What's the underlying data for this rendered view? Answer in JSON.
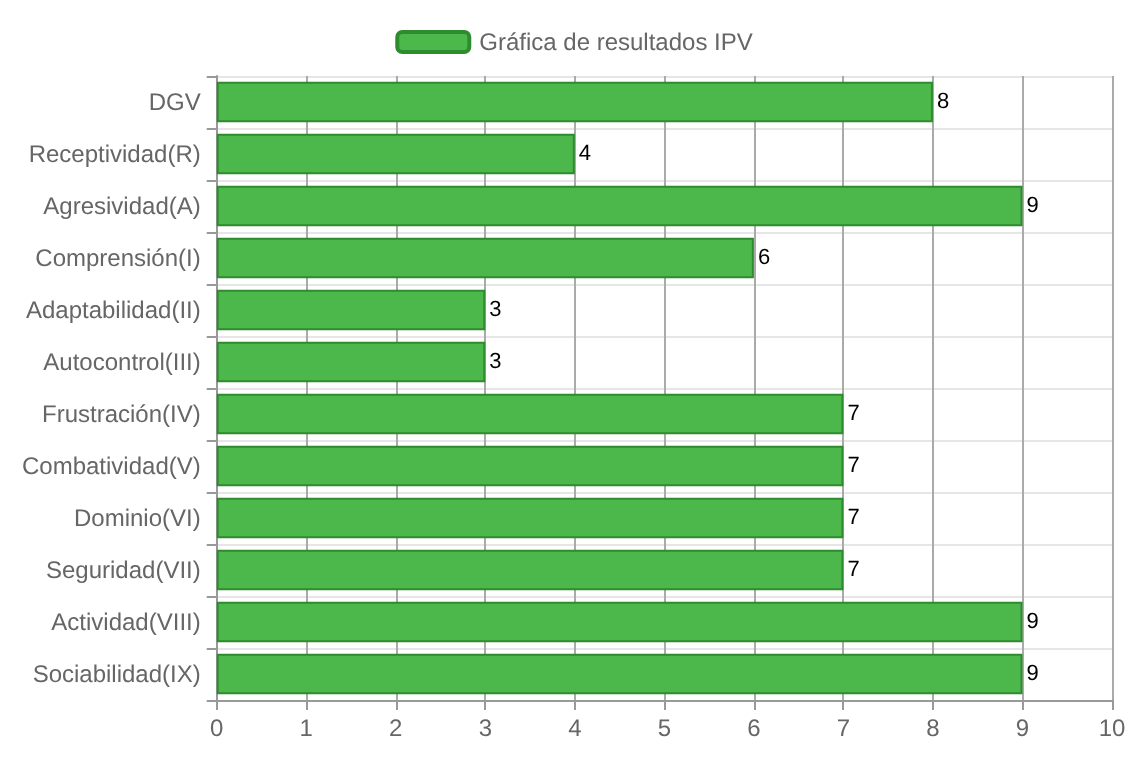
{
  "chart_data": {
    "type": "bar",
    "orientation": "horizontal",
    "categories": [
      "DGV",
      "Receptividad(R)",
      "Agresividad(A)",
      "Comprensión(I)",
      "Adaptabilidad(II)",
      "Autocontrol(III)",
      "Frustración(IV)",
      "Combatividad(V)",
      "Dominio(VI)",
      "Seguridad(VII)",
      "Actividad(VIII)",
      "Sociabilidad(IX)"
    ],
    "series": [
      {
        "name": "Gráfica de resultados IPV",
        "color": "#4cb84c",
        "values": [
          8,
          4,
          9,
          6,
          3,
          3,
          7,
          7,
          7,
          7,
          9,
          9
        ]
      }
    ],
    "xlim": [
      0,
      10
    ],
    "xticks": [
      0,
      1,
      2,
      3,
      4,
      5,
      6,
      7,
      8,
      9,
      10
    ],
    "grid": true,
    "legend": "top",
    "data_labels": true
  }
}
